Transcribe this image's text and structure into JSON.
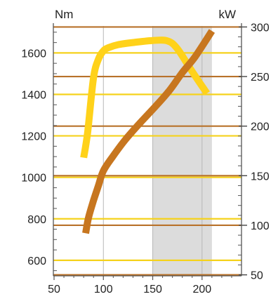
{
  "chart_data": {
    "type": "line",
    "title": "",
    "xlabel": "",
    "left_axis": {
      "unit_label": "Nm",
      "range": [
        525,
        1730
      ],
      "ticks": [
        600,
        800,
        1000,
        1200,
        1400,
        1600
      ],
      "tick_labels": [
        "600",
        "800",
        "1000",
        "1200",
        "1400",
        "1600"
      ],
      "gridline_color": "#f5d21c"
    },
    "right_axis": {
      "unit_label": "kW",
      "range": [
        49,
        301
      ],
      "ticks": [
        50,
        100,
        150,
        200,
        250,
        300
      ],
      "tick_labels": [
        "50",
        "100",
        "150",
        "200",
        "250",
        "300"
      ],
      "gridline_color": "#b8722a"
    },
    "x_axis": {
      "range": [
        50,
        235
      ],
      "ticks": [
        50,
        100,
        150,
        200
      ],
      "tick_labels": [
        "50",
        "100",
        "150",
        "200"
      ]
    },
    "shaded_band": {
      "x_start": 150,
      "x_end": 210,
      "color": "#dcdcdc"
    },
    "grid": true,
    "series": [
      {
        "axis": "left",
        "color": "#ffd21a",
        "x": [
          80,
          84,
          90,
          95,
          100,
          105,
          115,
          130,
          150,
          165,
          175,
          190,
          205
        ],
        "y": [
          1095,
          1215,
          1480,
          1570,
          1610,
          1625,
          1640,
          1650,
          1660,
          1658,
          1620,
          1510,
          1405
        ]
      },
      {
        "axis": "right",
        "color": "#c7761f",
        "x": [
          82,
          85,
          90,
          95,
          100,
          110,
          122,
          137,
          152,
          167,
          180,
          193,
          210
        ],
        "y": [
          92,
          108,
          125,
          140,
          155,
          170,
          186,
          203,
          219,
          236,
          254,
          270,
          296
        ]
      }
    ]
  }
}
